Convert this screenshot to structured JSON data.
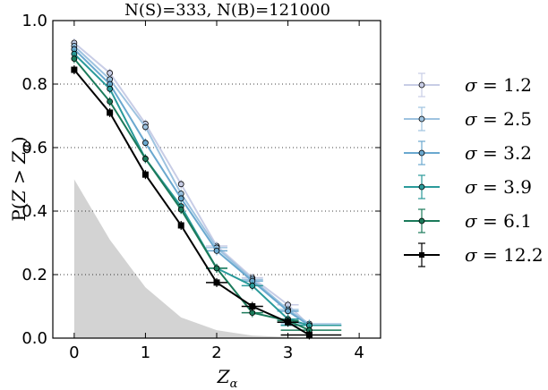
{
  "chart_data": {
    "type": "line",
    "title": "N(S)=333, N(B)=121000",
    "xlabel": "Z_α",
    "ylabel": "P(Z > Z_α)",
    "xlabel_main": "Z",
    "xlabel_sub": "α",
    "ylabel_prefix": "P(",
    "ylabel_z": "Z",
    "ylabel_gt": " > ",
    "ylabel_za": "Z",
    "ylabel_sub": "α",
    "ylabel_suffix": ")",
    "xlim": [
      -0.3,
      4.3
    ],
    "ylim": [
      0.0,
      1.0
    ],
    "xticks": [
      "0",
      "1",
      "2",
      "3",
      "4"
    ],
    "yticks": [
      "0.0",
      "0.2",
      "0.4",
      "0.6",
      "0.8",
      "1.0"
    ],
    "grid": "horizontal dotted",
    "legend_position": "right",
    "background_fill": {
      "name": "background distribution",
      "x": [
        0,
        0.5,
        1.0,
        1.5,
        2.0,
        2.5,
        3.0,
        3.3
      ],
      "y": [
        0.5,
        0.31,
        0.16,
        0.065,
        0.025,
        0.008,
        0.003,
        0.0
      ],
      "color": "#d3d3d3"
    },
    "x": [
      0.0,
      0.5,
      1.0,
      1.5,
      2.0,
      2.5,
      3.0,
      3.3
    ],
    "series": [
      {
        "name": "σ = 1.2",
        "sigma": "1.2",
        "color": "#c8cde6",
        "values": [
          0.93,
          0.835,
          0.675,
          0.485,
          0.29,
          0.19,
          0.105,
          0.04
        ]
      },
      {
        "name": "σ = 2.5",
        "sigma": "2.5",
        "color": "#9ec3e0",
        "values": [
          0.92,
          0.815,
          0.665,
          0.455,
          0.285,
          0.185,
          0.09,
          0.045
        ]
      },
      {
        "name": "σ = 3.2",
        "sigma": "3.2",
        "color": "#6aa8cf",
        "values": [
          0.91,
          0.8,
          0.615,
          0.44,
          0.275,
          0.18,
          0.085,
          0.04
        ]
      },
      {
        "name": "σ = 3.9",
        "sigma": "3.9",
        "color": "#2a9a9a",
        "values": [
          0.895,
          0.785,
          0.565,
          0.415,
          0.22,
          0.165,
          0.06,
          0.04
        ]
      },
      {
        "name": "σ = 6.1",
        "sigma": "6.1",
        "color": "#1b7a5a",
        "values": [
          0.88,
          0.745,
          0.565,
          0.405,
          0.22,
          0.08,
          0.055,
          0.025
        ]
      },
      {
        "name": "σ = 12.2",
        "sigma": "12.2",
        "color": "#000000",
        "values": [
          0.845,
          0.71,
          0.515,
          0.355,
          0.175,
          0.1,
          0.05,
          0.01
        ]
      }
    ]
  }
}
